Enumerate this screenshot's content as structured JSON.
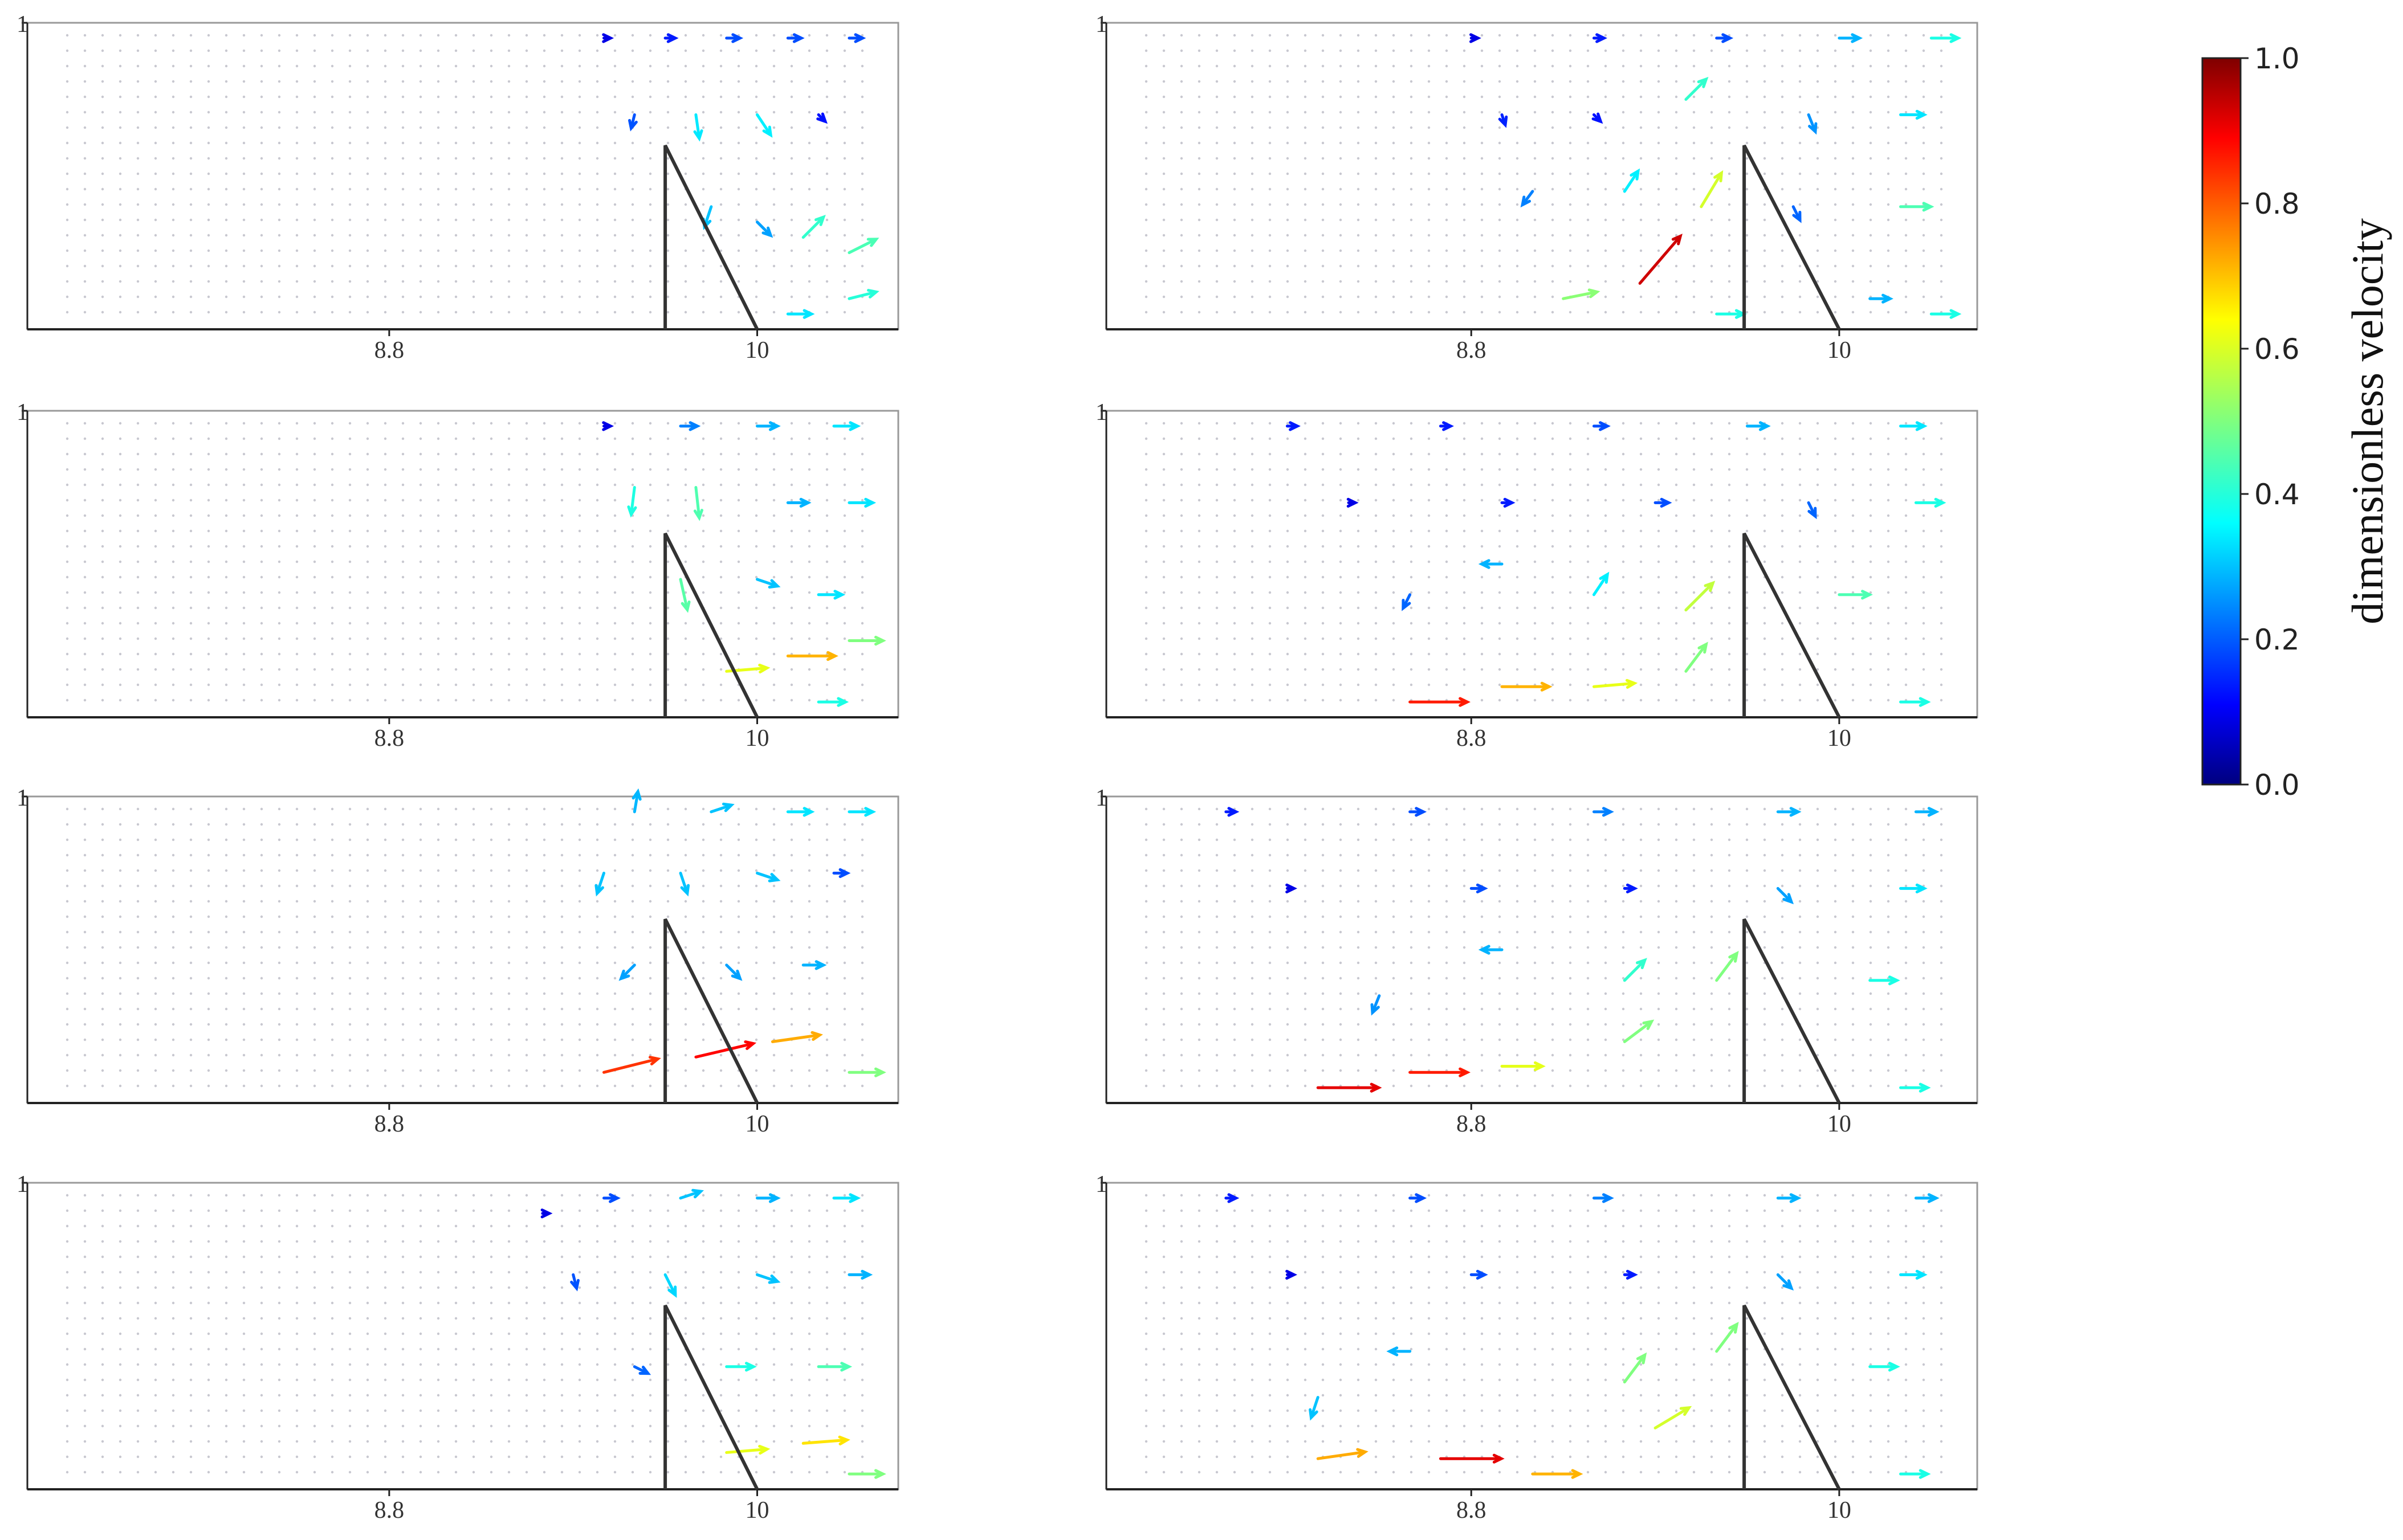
{
  "chart_data": [
    {
      "type": "quiver",
      "xlim": [
        7.62,
        10.46
      ],
      "ylim": [
        0,
        1
      ],
      "xticks": [
        8.8,
        10
      ],
      "yticks": [
        1
      ],
      "obstacle": {
        "x": [
          9.7,
          9.7,
          10
        ],
        "y": [
          0,
          0.6,
          0
        ]
      },
      "x": [
        9.5,
        9.7,
        9.9,
        10.1,
        10.3,
        9.6,
        9.8,
        10.0,
        10.2,
        9.85,
        10.0,
        10.15,
        10.3,
        10.3,
        10.1
      ],
      "y": [
        0.95,
        0.95,
        0.95,
        0.95,
        0.95,
        0.7,
        0.7,
        0.7,
        0.7,
        0.4,
        0.35,
        0.3,
        0.25,
        0.1,
        0.05
      ],
      "u": [
        0.1,
        0.15,
        0.2,
        0.2,
        0.2,
        -0.05,
        0.05,
        0.2,
        0.1,
        -0.1,
        0.2,
        0.3,
        0.4,
        0.4,
        0.35
      ],
      "v": [
        0,
        0,
        0,
        0,
        0,
        -0.2,
        -0.35,
        -0.3,
        -0.1,
        -0.3,
        -0.2,
        0.3,
        0.2,
        0.1,
        0
      ]
    },
    {
      "type": "quiver",
      "xlim": [
        7.62,
        10.46
      ],
      "ylim": [
        0,
        1
      ],
      "xticks": [
        8.8,
        10
      ],
      "yticks": [
        1
      ],
      "obstacle": {
        "x": [
          9.7,
          9.7,
          10
        ],
        "y": [
          0,
          0.6,
          0
        ]
      },
      "x": [
        9.5,
        9.75,
        10.0,
        10.25,
        9.6,
        9.8,
        10.1,
        10.3,
        9.75,
        10.0,
        10.2,
        9.9,
        10.1,
        10.3,
        10.2
      ],
      "y": [
        0.95,
        0.95,
        0.95,
        0.95,
        0.75,
        0.75,
        0.7,
        0.7,
        0.45,
        0.45,
        0.4,
        0.15,
        0.2,
        0.25,
        0.05
      ],
      "u": [
        0.1,
        0.25,
        0.3,
        0.35,
        -0.05,
        0.05,
        0.3,
        0.35,
        0.1,
        0.3,
        0.35,
        0.6,
        0.7,
        0.5,
        0.4
      ],
      "v": [
        0,
        0,
        0,
        0,
        -0.4,
        -0.45,
        0,
        0,
        -0.45,
        -0.1,
        0,
        0.05,
        0,
        0,
        0
      ]
    },
    {
      "type": "quiver",
      "xlim": [
        7.62,
        10.46
      ],
      "ylim": [
        0,
        1
      ],
      "xticks": [
        8.8,
        10
      ],
      "yticks": [
        1
      ],
      "obstacle": {
        "x": [
          9.7,
          9.7,
          10
        ],
        "y": [
          0,
          0.6,
          0
        ]
      },
      "x": [
        9.6,
        9.85,
        10.1,
        10.3,
        9.5,
        9.75,
        10.0,
        10.25,
        9.6,
        9.9,
        10.15,
        9.5,
        9.8,
        10.05,
        10.3
      ],
      "y": [
        0.95,
        0.95,
        0.95,
        0.95,
        0.75,
        0.75,
        0.75,
        0.75,
        0.45,
        0.45,
        0.45,
        0.1,
        0.15,
        0.2,
        0.1
      ],
      "u": [
        0.05,
        0.3,
        0.35,
        0.35,
        -0.1,
        0.1,
        0.3,
        0.2,
        -0.2,
        0.2,
        0.3,
        0.8,
        0.85,
        0.7,
        0.5
      ],
      "v": [
        0.3,
        0.1,
        0,
        0,
        -0.3,
        -0.3,
        -0.1,
        0,
        -0.2,
        -0.2,
        0,
        0.2,
        0.2,
        0.1,
        0
      ]
    },
    {
      "type": "quiver",
      "xlim": [
        7.62,
        10.46
      ],
      "ylim": [
        0,
        1
      ],
      "xticks": [
        8.8,
        10
      ],
      "yticks": [
        1
      ],
      "obstacle": {
        "x": [
          9.7,
          9.7,
          10
        ],
        "y": [
          0,
          0.6,
          0
        ]
      },
      "x": [
        9.3,
        9.5,
        9.75,
        10.0,
        10.25,
        9.4,
        9.7,
        10.0,
        10.3,
        9.6,
        9.9,
        10.2,
        9.9,
        10.15,
        10.3
      ],
      "y": [
        0.9,
        0.95,
        0.95,
        0.95,
        0.95,
        0.7,
        0.7,
        0.7,
        0.7,
        0.4,
        0.4,
        0.4,
        0.12,
        0.15,
        0.05
      ],
      "u": [
        0.1,
        0.2,
        0.3,
        0.3,
        0.35,
        0.05,
        0.15,
        0.3,
        0.3,
        0.2,
        0.4,
        0.45,
        0.6,
        0.65,
        0.5
      ],
      "v": [
        0,
        0,
        0.1,
        0,
        0,
        -0.2,
        -0.3,
        -0.1,
        0,
        -0.1,
        0,
        0,
        0.05,
        0.05,
        0
      ]
    },
    {
      "type": "quiver",
      "xlim": [
        7.61,
        10.45
      ],
      "ylim": [
        0,
        1
      ],
      "xticks": [
        8.8,
        10
      ],
      "yticks": [
        1
      ],
      "obstacle": {
        "x": [
          9.69,
          9.69,
          10
        ],
        "y": [
          0,
          0.6,
          0
        ]
      },
      "x": [
        8.8,
        9.2,
        9.6,
        10.0,
        10.3,
        8.9,
        9.2,
        9.5,
        9.9,
        10.2,
        9.0,
        9.3,
        9.55,
        9.85,
        10.2,
        9.1,
        9.35,
        9.6,
        10.1,
        10.3
      ],
      "y": [
        0.95,
        0.95,
        0.95,
        0.95,
        0.95,
        0.7,
        0.7,
        0.75,
        0.7,
        0.7,
        0.45,
        0.45,
        0.4,
        0.4,
        0.4,
        0.1,
        0.15,
        0.05,
        0.1,
        0.05
      ],
      "u": [
        0.1,
        0.15,
        0.2,
        0.3,
        0.4,
        0.05,
        0.1,
        0.3,
        0.1,
        0.35,
        -0.15,
        0.2,
        0.3,
        0.1,
        0.45,
        0.5,
        0.6,
        0.4,
        0.3,
        0.4
      ],
      "v": [
        0,
        0,
        0,
        0,
        0,
        -0.15,
        -0.1,
        0.3,
        -0.25,
        0,
        -0.2,
        0.3,
        0.5,
        -0.2,
        0,
        0.1,
        0.7,
        0,
        0,
        0
      ]
    },
    {
      "type": "quiver",
      "xlim": [
        7.61,
        10.45
      ],
      "ylim": [
        0,
        1
      ],
      "xticks": [
        8.8,
        10
      ],
      "yticks": [
        1
      ],
      "obstacle": {
        "x": [
          9.69,
          9.69,
          10
        ],
        "y": [
          0,
          0.6,
          0
        ]
      },
      "x": [
        8.2,
        8.7,
        9.2,
        9.7,
        10.2,
        8.4,
        8.9,
        9.4,
        9.9,
        10.25,
        8.6,
        8.9,
        9.2,
        9.5,
        10.0,
        8.6,
        8.9,
        9.2,
        9.5,
        10.2
      ],
      "y": [
        0.95,
        0.95,
        0.95,
        0.95,
        0.95,
        0.7,
        0.7,
        0.7,
        0.7,
        0.7,
        0.4,
        0.5,
        0.4,
        0.35,
        0.4,
        0.05,
        0.1,
        0.1,
        0.15,
        0.05
      ],
      "u": [
        0.15,
        0.15,
        0.2,
        0.3,
        0.35,
        0.1,
        0.15,
        0.2,
        0.1,
        0.4,
        -0.1,
        -0.3,
        0.2,
        0.4,
        0.45,
        0.85,
        0.7,
        0.6,
        0.3,
        0.4
      ],
      "v": [
        0,
        0,
        0,
        0,
        0,
        0,
        0,
        0,
        -0.2,
        0,
        -0.2,
        0,
        0.3,
        0.4,
        0,
        0,
        0,
        0.05,
        0.4,
        0
      ]
    },
    {
      "type": "quiver",
      "xlim": [
        7.61,
        10.45
      ],
      "ylim": [
        0,
        1
      ],
      "xticks": [
        8.8,
        10
      ],
      "yticks": [
        1
      ],
      "obstacle": {
        "x": [
          9.69,
          9.69,
          10
        ],
        "y": [
          0,
          0.6,
          0
        ]
      },
      "x": [
        8.0,
        8.6,
        9.2,
        9.8,
        10.25,
        8.2,
        8.8,
        9.3,
        9.8,
        10.2,
        8.5,
        8.9,
        9.3,
        9.6,
        10.1,
        8.3,
        8.6,
        8.9,
        9.3,
        10.2
      ],
      "y": [
        0.95,
        0.95,
        0.95,
        0.95,
        0.95,
        0.7,
        0.7,
        0.7,
        0.7,
        0.7,
        0.35,
        0.5,
        0.4,
        0.4,
        0.4,
        0.05,
        0.1,
        0.12,
        0.2,
        0.05
      ],
      "u": [
        0.15,
        0.2,
        0.25,
        0.3,
        0.3,
        0.1,
        0.2,
        0.15,
        0.2,
        0.35,
        -0.1,
        -0.3,
        0.3,
        0.3,
        0.4,
        0.9,
        0.85,
        0.6,
        0.4,
        0.4
      ],
      "v": [
        0,
        0,
        0,
        0,
        0,
        0,
        0,
        0,
        -0.2,
        0,
        -0.25,
        0,
        0.3,
        0.4,
        0,
        0,
        0,
        0,
        0.3,
        0
      ]
    },
    {
      "type": "quiver",
      "xlim": [
        7.61,
        10.45
      ],
      "ylim": [
        0,
        1
      ],
      "xticks": [
        8.8,
        10
      ],
      "yticks": [
        1
      ],
      "obstacle": {
        "x": [
          9.69,
          9.69,
          10
        ],
        "y": [
          0,
          0.6,
          0
        ]
      },
      "x": [
        8.0,
        8.6,
        9.2,
        9.8,
        10.25,
        8.2,
        8.8,
        9.3,
        9.8,
        10.2,
        8.3,
        8.6,
        9.3,
        9.6,
        10.1,
        8.3,
        8.7,
        9.0,
        9.4,
        10.2
      ],
      "y": [
        0.95,
        0.95,
        0.95,
        0.95,
        0.95,
        0.7,
        0.7,
        0.7,
        0.7,
        0.7,
        0.3,
        0.45,
        0.35,
        0.45,
        0.4,
        0.1,
        0.1,
        0.05,
        0.2,
        0.05
      ],
      "u": [
        0.15,
        0.2,
        0.25,
        0.3,
        0.3,
        0.1,
        0.2,
        0.15,
        0.2,
        0.35,
        -0.1,
        -0.3,
        0.3,
        0.3,
        0.4,
        0.7,
        0.9,
        0.7,
        0.5,
        0.4
      ],
      "v": [
        0,
        0,
        0,
        0,
        0,
        0,
        0,
        0,
        -0.2,
        0,
        -0.3,
        0,
        0.4,
        0.4,
        0,
        0.1,
        0,
        0,
        0.3,
        0
      ]
    },
    {
      "type": "colorbar",
      "label": "dimensionless velocity",
      "clim": [
        0,
        1
      ],
      "ticks": [
        {
          "value": 0,
          "label": "0.0"
        },
        0.2,
        0.4,
        0.6,
        0.8,
        {
          "value": 1,
          "label": "1.0"
        }
      ]
    }
  ]
}
